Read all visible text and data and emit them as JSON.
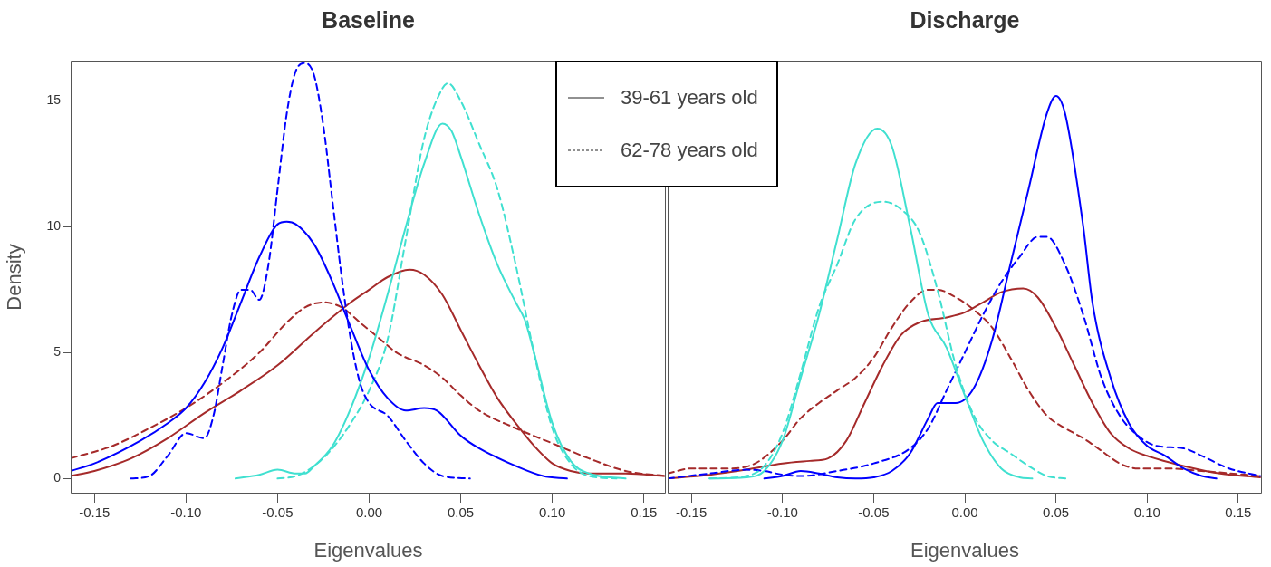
{
  "chart_data": [
    {
      "type": "line",
      "title": "Baseline",
      "xlabel": "Eigenvalues",
      "ylabel": "Density",
      "xlim": [
        -0.163,
        0.162
      ],
      "ylim": [
        -0.6,
        16.6
      ],
      "xticks": [
        {
          "value": -0.15,
          "label": "-0.15"
        },
        {
          "value": -0.1,
          "label": "-0.10"
        },
        {
          "value": -0.05,
          "label": "-0.05"
        },
        {
          "value": 0,
          "label": "0.00"
        },
        {
          "value": 0.05,
          "label": "0.05"
        },
        {
          "value": 0.1,
          "label": "0.10"
        },
        {
          "value": 0.15,
          "label": "0.15"
        }
      ],
      "yticks": [
        0,
        5,
        10,
        15
      ],
      "grid": false,
      "marker": "none",
      "annotations": [
        "39-61 years old",
        "62-78 years old"
      ],
      "series": [
        {
          "color": "#0000ff",
          "line_style": "solid",
          "x": [
            -0.163,
            -0.15,
            -0.125,
            -0.11,
            -0.1,
            -0.09,
            -0.08,
            -0.07,
            -0.06,
            -0.05,
            -0.045,
            -0.04,
            -0.03,
            -0.02,
            -0.01,
            0.0,
            0.01,
            0.02,
            0.03,
            0.037,
            0.05,
            0.06,
            0.08,
            0.095,
            0.108
          ],
          "values": [
            0.3,
            0.6,
            1.5,
            2.2,
            2.8,
            3.8,
            5.2,
            7.0,
            8.8,
            10.1,
            10.2,
            10.1,
            9.3,
            7.8,
            6.0,
            4.3,
            3.2,
            2.7,
            2.8,
            2.7,
            1.7,
            1.2,
            0.5,
            0.1,
            0
          ]
        },
        {
          "color": "#0000ff",
          "line_style": "dashed",
          "x": [
            -0.13,
            -0.12,
            -0.11,
            -0.1,
            -0.09,
            -0.085,
            -0.08,
            -0.075,
            -0.07,
            -0.065,
            -0.06,
            -0.055,
            -0.05,
            -0.045,
            -0.04,
            -0.035,
            -0.03,
            -0.025,
            -0.02,
            -0.015,
            -0.01,
            -0.005,
            0.0,
            0.01,
            0.02,
            0.03,
            0.04,
            0.055
          ],
          "values": [
            0,
            0.1,
            0.9,
            1.8,
            1.6,
            2.5,
            4.5,
            6.5,
            7.5,
            7.5,
            7.1,
            8.5,
            11.5,
            14.5,
            16.2,
            16.5,
            16.0,
            14.0,
            11.0,
            8.0,
            5.5,
            3.8,
            3.0,
            2.5,
            1.5,
            0.6,
            0.1,
            0
          ]
        },
        {
          "color": "#40e0d0",
          "line_style": "solid",
          "x": [
            -0.073,
            -0.06,
            -0.05,
            -0.04,
            -0.035,
            -0.03,
            -0.02,
            -0.01,
            0.0,
            0.01,
            0.02,
            0.03,
            0.04,
            0.045,
            0.05,
            0.06,
            0.07,
            0.08,
            0.085,
            0.09,
            0.1,
            0.11,
            0.12,
            0.14
          ],
          "values": [
            0,
            0.15,
            0.35,
            0.2,
            0.2,
            0.5,
            1.3,
            2.8,
            4.8,
            7.3,
            10.0,
            12.5,
            14.1,
            13.8,
            12.8,
            10.5,
            8.5,
            7.0,
            6.3,
            5.0,
            2.2,
            0.7,
            0.2,
            0
          ]
        },
        {
          "color": "#40e0d0",
          "line_style": "dashed",
          "x": [
            -0.05,
            -0.04,
            -0.03,
            -0.02,
            -0.01,
            0.0,
            0.01,
            0.02,
            0.03,
            0.04,
            0.043,
            0.05,
            0.06,
            0.07,
            0.08,
            0.09,
            0.1,
            0.11,
            0.12,
            0.135
          ],
          "values": [
            0,
            0.1,
            0.5,
            1.2,
            2.2,
            3.5,
            5.5,
            9.5,
            13.5,
            15.5,
            15.7,
            15.0,
            13.3,
            11.5,
            8.5,
            5.0,
            2.0,
            0.6,
            0.1,
            0
          ]
        },
        {
          "color": "#a52a2a",
          "line_style": "solid",
          "x": [
            -0.163,
            -0.15,
            -0.13,
            -0.11,
            -0.09,
            -0.07,
            -0.05,
            -0.03,
            -0.01,
            0.0,
            0.01,
            0.022,
            0.03,
            0.04,
            0.05,
            0.06,
            0.07,
            0.08,
            0.09,
            0.1,
            0.11,
            0.12,
            0.14,
            0.162
          ],
          "values": [
            0.1,
            0.3,
            0.8,
            1.6,
            2.6,
            3.5,
            4.5,
            5.8,
            7.0,
            7.5,
            8.0,
            8.3,
            8.1,
            7.3,
            5.9,
            4.5,
            3.2,
            2.2,
            1.3,
            0.6,
            0.3,
            0.2,
            0.2,
            0.1
          ]
        },
        {
          "color": "#a52a2a",
          "line_style": "dashed",
          "x": [
            -0.163,
            -0.14,
            -0.12,
            -0.1,
            -0.08,
            -0.06,
            -0.045,
            -0.035,
            -0.025,
            -0.015,
            -0.005,
            0.005,
            0.015,
            0.03,
            0.04,
            0.05,
            0.06,
            0.08,
            0.1,
            0.12,
            0.14,
            0.162
          ],
          "values": [
            0.8,
            1.3,
            2.0,
            2.8,
            3.8,
            5.0,
            6.2,
            6.8,
            7.0,
            6.8,
            6.2,
            5.6,
            5.0,
            4.5,
            4.0,
            3.3,
            2.7,
            2.0,
            1.4,
            0.8,
            0.3,
            0.1
          ]
        }
      ]
    },
    {
      "type": "line",
      "title": "Discharge",
      "xlabel": "Eigenvalues",
      "xlim": [
        -0.163,
        0.163
      ],
      "ylim": [
        -0.6,
        16.6
      ],
      "tick_labels": "x",
      "xticks": [
        {
          "value": -0.15,
          "label": "-0.15"
        },
        {
          "value": -0.1,
          "label": "-0.10"
        },
        {
          "value": -0.05,
          "label": "-0.05"
        },
        {
          "value": 0,
          "label": "0.00"
        },
        {
          "value": 0.05,
          "label": "0.05"
        },
        {
          "value": 0.1,
          "label": "0.10"
        },
        {
          "value": 0.15,
          "label": "0.15"
        }
      ],
      "yticks": [
        0,
        5,
        10,
        15
      ],
      "grid": false,
      "marker": "none",
      "series": [
        {
          "color": "#40e0d0",
          "line_style": "solid",
          "x": [
            -0.14,
            -0.12,
            -0.11,
            -0.1,
            -0.09,
            -0.08,
            -0.07,
            -0.06,
            -0.048,
            -0.04,
            -0.03,
            -0.02,
            -0.01,
            0.0,
            0.01,
            0.02,
            0.03,
            0.037
          ],
          "values": [
            0,
            0.05,
            0.3,
            1.5,
            4.0,
            6.5,
            9.5,
            12.5,
            13.9,
            13.2,
            10.0,
            6.5,
            5.2,
            3.3,
            1.5,
            0.4,
            0.05,
            0
          ]
        },
        {
          "color": "#40e0d0",
          "line_style": "dashed",
          "x": [
            -0.14,
            -0.12,
            -0.11,
            -0.1,
            -0.09,
            -0.08,
            -0.07,
            -0.06,
            -0.045,
            -0.035,
            -0.025,
            -0.015,
            -0.005,
            0.005,
            0.015,
            0.025,
            0.035,
            0.045,
            0.056
          ],
          "values": [
            0,
            0.1,
            0.5,
            1.8,
            4.2,
            6.8,
            8.5,
            10.3,
            11.0,
            10.7,
            9.8,
            7.5,
            4.5,
            2.5,
            1.5,
            1.0,
            0.5,
            0.1,
            0
          ]
        },
        {
          "color": "#0000ff",
          "line_style": "solid",
          "x": [
            -0.11,
            -0.1,
            -0.09,
            -0.08,
            -0.07,
            -0.06,
            -0.05,
            -0.04,
            -0.03,
            -0.02,
            -0.015,
            -0.005,
            0.005,
            0.015,
            0.025,
            0.035,
            0.045,
            0.05,
            0.055,
            0.065,
            0.07,
            0.08,
            0.09,
            0.1,
            0.11,
            0.12,
            0.13,
            0.138
          ],
          "values": [
            0,
            0.1,
            0.3,
            0.2,
            0.05,
            0,
            0.05,
            0.3,
            1.0,
            2.4,
            3.0,
            3.0,
            3.6,
            5.5,
            8.5,
            11.5,
            14.5,
            15.2,
            14.5,
            10.0,
            7.0,
            4.0,
            2.2,
            1.3,
            0.9,
            0.4,
            0.1,
            0
          ]
        },
        {
          "color": "#0000ff",
          "line_style": "dashed",
          "x": [
            -0.163,
            -0.14,
            -0.12,
            -0.11,
            -0.1,
            -0.09,
            -0.07,
            -0.05,
            -0.03,
            -0.02,
            -0.01,
            0.0,
            0.01,
            0.02,
            0.03,
            0.04,
            0.045,
            0.055,
            0.065,
            0.075,
            0.085,
            0.095,
            0.105,
            0.12,
            0.13,
            0.145,
            0.162
          ],
          "values": [
            0,
            0.2,
            0.35,
            0.3,
            0.15,
            0.1,
            0.3,
            0.6,
            1.2,
            2.0,
            3.5,
            5.0,
            6.5,
            7.8,
            8.8,
            9.6,
            9.6,
            8.5,
            6.5,
            4.0,
            2.5,
            1.7,
            1.3,
            1.2,
            0.9,
            0.4,
            0.1
          ]
        },
        {
          "color": "#a52a2a",
          "line_style": "solid",
          "x": [
            -0.163,
            -0.14,
            -0.12,
            -0.1,
            -0.085,
            -0.075,
            -0.065,
            -0.055,
            -0.045,
            -0.035,
            -0.025,
            -0.01,
            0.0,
            0.01,
            0.02,
            0.032,
            0.04,
            0.05,
            0.06,
            0.07,
            0.08,
            0.09,
            0.1,
            0.12,
            0.14,
            0.162
          ],
          "values": [
            0,
            0.15,
            0.35,
            0.6,
            0.7,
            0.8,
            1.5,
            3.0,
            4.5,
            5.7,
            6.2,
            6.4,
            6.6,
            7.0,
            7.4,
            7.55,
            7.2,
            6.0,
            4.5,
            3.0,
            1.8,
            1.2,
            0.9,
            0.5,
            0.2,
            0.05
          ]
        },
        {
          "color": "#a52a2a",
          "line_style": "dashed",
          "x": [
            -0.163,
            -0.15,
            -0.13,
            -0.115,
            -0.1,
            -0.09,
            -0.08,
            -0.07,
            -0.06,
            -0.05,
            -0.04,
            -0.03,
            -0.02,
            -0.015,
            -0.005,
            0.005,
            0.015,
            0.025,
            0.035,
            0.045,
            0.055,
            0.065,
            0.075,
            0.085,
            0.095,
            0.11,
            0.13,
            0.162
          ],
          "values": [
            0.2,
            0.4,
            0.4,
            0.6,
            1.5,
            2.4,
            3.0,
            3.5,
            4.0,
            4.8,
            6.0,
            7.0,
            7.5,
            7.5,
            7.2,
            6.7,
            6.0,
            4.8,
            3.5,
            2.5,
            2.0,
            1.6,
            1.1,
            0.6,
            0.4,
            0.4,
            0.3,
            0.1
          ]
        }
      ]
    }
  ]
}
